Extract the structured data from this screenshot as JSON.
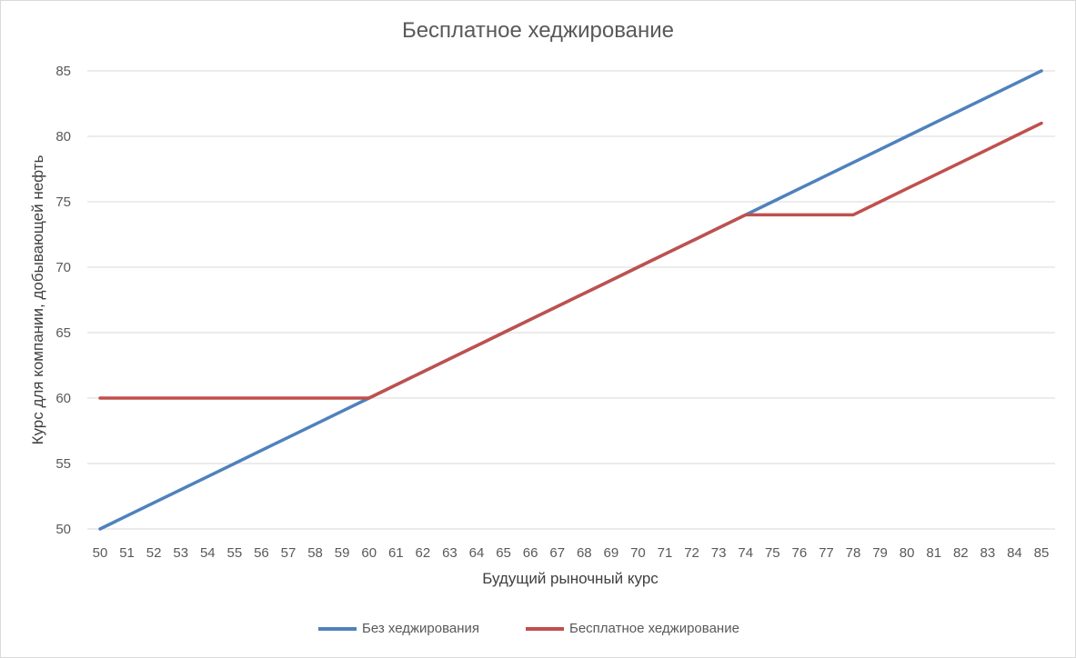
{
  "chart_data": {
    "type": "line",
    "title": "Бесплатное хеджирование",
    "xlabel": "Будущий рыночный курс",
    "ylabel": "Курс для компании, добывающей нефть",
    "x": [
      50,
      51,
      52,
      53,
      54,
      55,
      56,
      57,
      58,
      59,
      60,
      61,
      62,
      63,
      64,
      65,
      66,
      67,
      68,
      69,
      70,
      71,
      72,
      73,
      74,
      75,
      76,
      77,
      78,
      79,
      80,
      81,
      82,
      83,
      84,
      85
    ],
    "ylim": [
      50,
      85
    ],
    "yticks": [
      50,
      55,
      60,
      65,
      70,
      75,
      80,
      85
    ],
    "grid": true,
    "legend_position": "bottom",
    "series": [
      {
        "name": "Без хеджирования",
        "color": "#4f81bd",
        "values": [
          50,
          51,
          52,
          53,
          54,
          55,
          56,
          57,
          58,
          59,
          60,
          61,
          62,
          63,
          64,
          65,
          66,
          67,
          68,
          69,
          70,
          71,
          72,
          73,
          74,
          75,
          76,
          77,
          78,
          79,
          80,
          81,
          82,
          83,
          84,
          85
        ]
      },
      {
        "name": "Бесплатное хеджирование",
        "color": "#c0504d",
        "values": [
          60,
          60,
          60,
          60,
          60,
          60,
          60,
          60,
          60,
          60,
          60,
          61,
          62,
          63,
          64,
          65,
          66,
          67,
          68,
          69,
          70,
          71,
          72,
          73,
          74,
          74,
          74,
          74,
          74,
          75,
          76,
          77,
          78,
          79,
          80,
          81
        ]
      }
    ]
  }
}
